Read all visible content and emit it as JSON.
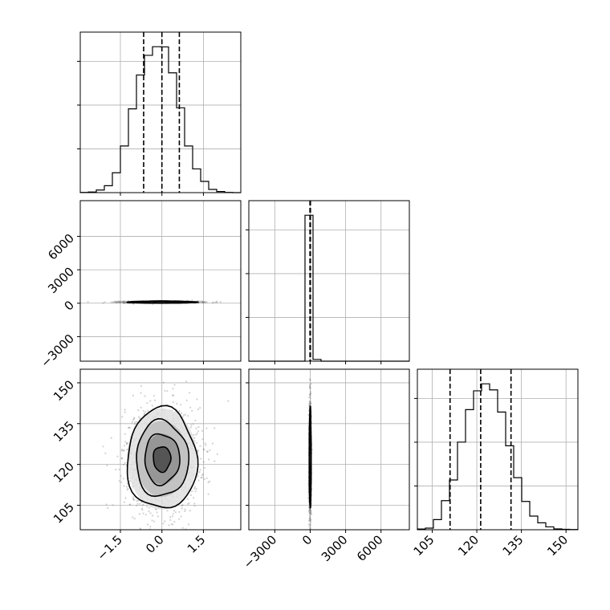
{
  "chart_data": {
    "type": "corner",
    "grid": true,
    "parameters": [
      {
        "xlim": [
          -2.95,
          2.85
        ],
        "ylim": [
          -5200,
          9200
        ],
        "ticks": [
          -1.5,
          0.0,
          1.5
        ],
        "tick_labels": [
          "−1.5",
          "0.0",
          "1.5"
        ]
      },
      {
        "xlim": [
          -5200,
          8400
        ],
        "ylim": [
          -5200,
          9200
        ],
        "ticks": [
          -3000,
          0,
          3000,
          6000
        ],
        "tick_labels": [
          "−3000",
          "0",
          "3000",
          "6000"
        ]
      },
      {
        "xlim": [
          100,
          154
        ],
        "ylim": [
          96,
          155
        ],
        "ticks": [
          105,
          120,
          135,
          150
        ],
        "tick_labels": [
          "105",
          "120",
          "135",
          "150"
        ]
      }
    ],
    "histograms": [
      {
        "param": 0,
        "bin_edges": [
          -2.95,
          -2.66,
          -2.37,
          -2.08,
          -1.79,
          -1.5,
          -1.21,
          -0.92,
          -0.63,
          -0.34,
          -0.05,
          0.24,
          0.53,
          0.82,
          1.11,
          1.4,
          1.69,
          1.98,
          2.27,
          2.56,
          2.85
        ],
        "counts": [
          1,
          3,
          12,
          32,
          92,
          216,
          388,
          545,
          636,
          676,
          675,
          555,
          393,
          216,
          110,
          52,
          15,
          5,
          1,
          0
        ],
        "quantiles": [
          -0.66,
          0.0,
          0.63
        ]
      },
      {
        "param": 1,
        "bin_edges": [
          -5200,
          -4520,
          -3840,
          -3160,
          -2480,
          -1800,
          -1120,
          -440,
          240,
          920,
          1600,
          2280,
          2960,
          3640,
          4320,
          5000,
          5680,
          6360,
          7040,
          7720,
          8400
        ],
        "counts": [
          0,
          0,
          0,
          0,
          0,
          0,
          0,
          4990,
          60,
          0,
          0,
          0,
          0,
          0,
          0,
          0,
          0,
          0,
          0,
          0
        ],
        "quantiles": [
          -20,
          0,
          20
        ]
      },
      {
        "param": 2,
        "bin_edges": [
          100,
          102.7,
          105.4,
          108.1,
          110.8,
          113.5,
          116.2,
          118.9,
          121.6,
          124.3,
          127,
          129.7,
          132.4,
          135.1,
          137.8,
          140.5,
          143.2,
          145.9,
          148.6,
          151.3,
          154
        ],
        "counts": [
          5,
          12,
          75,
          215,
          368,
          648,
          888,
          1027,
          1079,
          1034,
          870,
          621,
          385,
          209,
          101,
          51,
          21,
          6,
          3,
          2
        ],
        "quantiles": [
          111,
          121.3,
          131.5
        ]
      }
    ],
    "joint_panels": [
      {
        "x_param": 0,
        "y_param": 1,
        "x_center": 0.0,
        "y_center": 100,
        "x_sd": 0.63,
        "y_sd": 40
      },
      {
        "x_param": 0,
        "y_param": 2,
        "x_center": 0.0,
        "y_center": 122,
        "x_sd": 0.63,
        "y_sd": 9.3
      },
      {
        "x_param": 1,
        "y_param": 2,
        "x_center": 0,
        "y_center": 122,
        "x_sd": 40,
        "y_sd": 9.3
      }
    ]
  }
}
